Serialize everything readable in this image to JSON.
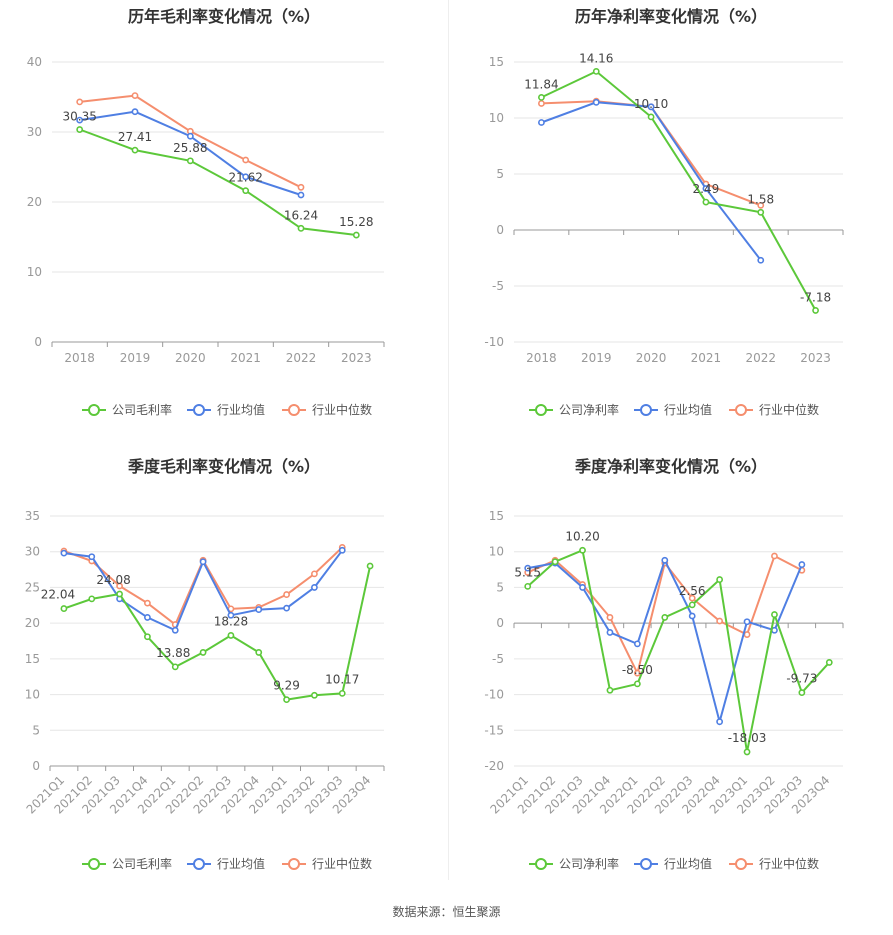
{
  "source_text": "数据来源：恒生聚源",
  "colors": {
    "company": "#5cc83a",
    "avg": "#4f7fe3",
    "median": "#f58e6e",
    "grid": "#e6e6e6",
    "axis": "#999999"
  },
  "chart_data": [
    {
      "type": "line",
      "title": "历年毛利率变化情况（%）",
      "categories": [
        "2018",
        "2019",
        "2020",
        "2021",
        "2022",
        "2023"
      ],
      "ylim": [
        0,
        40
      ],
      "yticks": [
        0,
        10,
        20,
        30,
        40
      ],
      "series": [
        {
          "name": "公司毛利率",
          "key": "company",
          "values": [
            30.35,
            27.41,
            25.88,
            21.62,
            16.24,
            15.28
          ],
          "labels": [
            "30.35",
            "27.41",
            "25.88",
            "21.62",
            "16.24",
            "15.28"
          ]
        },
        {
          "name": "行业均值",
          "key": "avg",
          "values": [
            31.7,
            32.9,
            29.4,
            23.6,
            21.0,
            null
          ]
        },
        {
          "name": "行业中位数",
          "key": "median",
          "values": [
            34.3,
            35.2,
            30.1,
            26.0,
            22.1,
            null
          ]
        }
      ]
    },
    {
      "type": "line",
      "title": "历年净利率变化情况（%）",
      "categories": [
        "2018",
        "2019",
        "2020",
        "2021",
        "2022",
        "2023"
      ],
      "ylim": [
        -10,
        15
      ],
      "yticks": [
        -10,
        -5,
        0,
        5,
        10,
        15
      ],
      "series": [
        {
          "name": "公司净利率",
          "key": "company",
          "values": [
            11.84,
            14.16,
            10.1,
            2.49,
            1.58,
            -7.18
          ],
          "labels": [
            "11.84",
            "14.16",
            "10.10",
            "2.49",
            "1.58",
            "-7.18"
          ]
        },
        {
          "name": "行业均值",
          "key": "avg",
          "values": [
            9.6,
            11.4,
            11.0,
            3.7,
            -2.7,
            null
          ]
        },
        {
          "name": "行业中位数",
          "key": "median",
          "values": [
            11.3,
            11.5,
            11.0,
            4.1,
            2.2,
            null
          ]
        }
      ]
    },
    {
      "type": "line",
      "title": "季度毛利率变化情况（%）",
      "categories": [
        "2021Q1",
        "2021Q2",
        "2021Q3",
        "2021Q4",
        "2022Q1",
        "2022Q2",
        "2022Q3",
        "2022Q4",
        "2023Q1",
        "2023Q2",
        "2023Q3",
        "2023Q4"
      ],
      "ylim": [
        0,
        35
      ],
      "yticks": [
        0,
        5,
        10,
        15,
        20,
        25,
        30,
        35
      ],
      "series": [
        {
          "name": "公司毛利率",
          "key": "company",
          "values": [
            22.04,
            23.4,
            24.08,
            18.1,
            13.88,
            15.9,
            18.28,
            15.9,
            9.29,
            9.9,
            10.17,
            28.0
          ],
          "labels": [
            "22.04",
            "",
            "24.08",
            "",
            "13.88",
            "",
            "18.28",
            "",
            "9.29",
            "",
            "10.17",
            ""
          ]
        },
        {
          "name": "行业均值",
          "key": "avg",
          "values": [
            29.8,
            29.3,
            23.4,
            20.8,
            19.0,
            28.6,
            21.1,
            21.9,
            22.1,
            25.0,
            30.2,
            null
          ]
        },
        {
          "name": "行业中位数",
          "key": "median",
          "values": [
            30.1,
            28.7,
            25.2,
            22.8,
            19.8,
            28.8,
            22.0,
            22.2,
            24.0,
            26.9,
            30.6,
            null
          ]
        }
      ]
    },
    {
      "type": "line",
      "title": "季度净利率变化情况（%）",
      "categories": [
        "2021Q1",
        "2021Q2",
        "2021Q3",
        "2021Q4",
        "2022Q1",
        "2022Q2",
        "2022Q3",
        "2022Q4",
        "2023Q1",
        "2023Q2",
        "2023Q3",
        "2023Q4"
      ],
      "ylim": [
        -20,
        15
      ],
      "yticks": [
        -20,
        -15,
        -10,
        -5,
        0,
        5,
        10,
        15
      ],
      "series": [
        {
          "name": "公司净利率",
          "key": "company",
          "values": [
            5.15,
            8.6,
            10.2,
            -9.4,
            -8.5,
            0.8,
            2.56,
            6.1,
            -18.03,
            1.2,
            -9.73,
            -5.5
          ],
          "labels": [
            "5.15",
            "",
            "10.20",
            "",
            "-8.50",
            "",
            "2.56",
            "",
            "-18.03",
            "",
            "-9.73",
            ""
          ]
        },
        {
          "name": "行业均值",
          "key": "avg",
          "values": [
            7.7,
            8.4,
            5.0,
            -1.3,
            -2.9,
            8.8,
            1.0,
            -13.8,
            0.2,
            -1.0,
            8.2,
            null
          ]
        },
        {
          "name": "行业中位数",
          "key": "median",
          "values": [
            7.1,
            8.8,
            5.4,
            0.8,
            -7.0,
            8.4,
            3.5,
            0.3,
            -1.6,
            9.4,
            7.4,
            null
          ]
        }
      ]
    }
  ]
}
